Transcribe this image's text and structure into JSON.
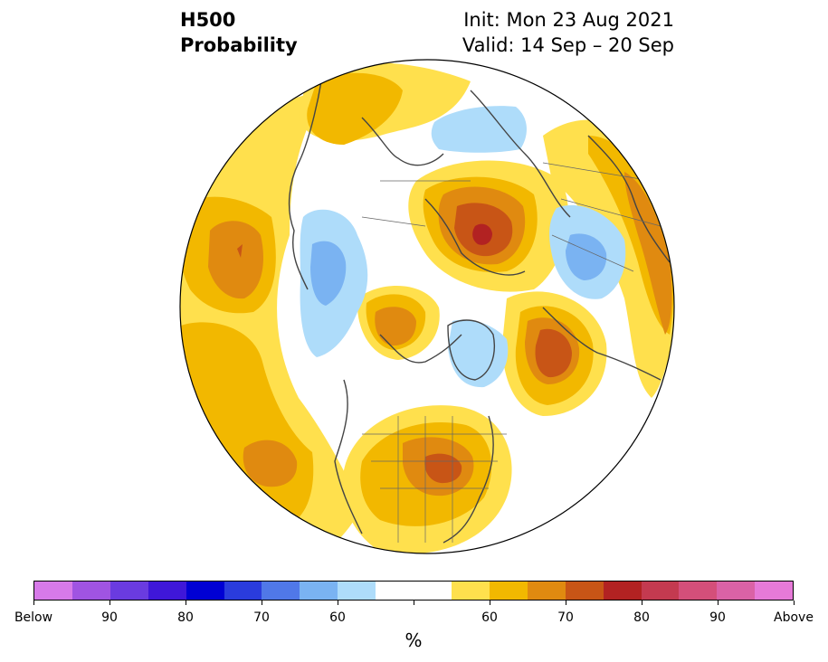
{
  "header": {
    "variable": "H500",
    "product": "Probability",
    "init": "Init: Mon 23 Aug 2021",
    "valid": "Valid: 14 Sep – 20 Sep"
  },
  "map": {
    "projection": "north-polar-stereographic",
    "field": "500 hPa height tercile probability"
  },
  "colorbar": {
    "colors": [
      "#d77ae9",
      "#a054e2",
      "#6a3be0",
      "#3f17d9",
      "#0000d4",
      "#2a3cdd",
      "#5078e8",
      "#7ab3f2",
      "#aedcfa",
      "#ffffff",
      "#ffffff",
      "#ffe04d",
      "#f2b800",
      "#e08a10",
      "#c85516",
      "#b22222",
      "#c43a50",
      "#d44f7a",
      "#da62a6",
      "#e67ad8"
    ],
    "labels": [
      "Below",
      "90",
      "80",
      "70",
      "60",
      "60",
      "70",
      "80",
      "90",
      "Above"
    ],
    "unit": "%"
  }
}
